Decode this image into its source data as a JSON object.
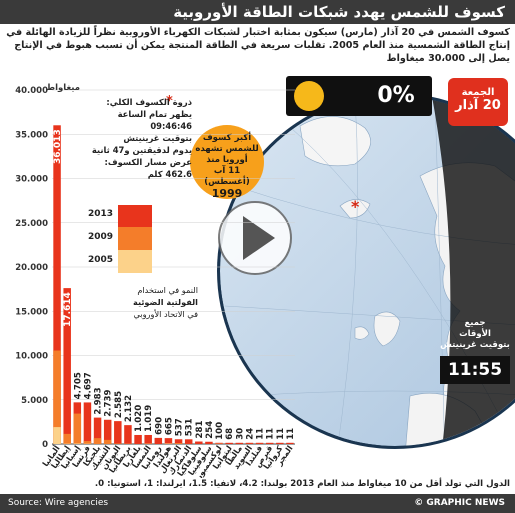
{
  "header": {
    "title": "كسوف للشمس يهدد شبكات الطاقة الأوروبية"
  },
  "intro": {
    "text": "كسوف الشمس في 20 آذار (مارس) سيكون بمثابة اختبار لشبكات الكهرباء الأوروبية نظراً للزيادة الهائلة في إنتاج الطاقة الشمسية منذ العام 2005. تقلبات سريعة في الطاقة المنتجة يمكن أن تسبب هبوط في الإنتاج يصل إلى 30،000 ميغاواط"
  },
  "eclipse": {
    "coverage": "0%",
    "coverage_fraction": 0.0
  },
  "date_badge": {
    "day": "الجمعة",
    "date": "20 آذار"
  },
  "callout": {
    "line1": "أكبر كسوف",
    "line2": "للشمس تشهده",
    "line3": "أوروبا منذ",
    "line4": "11 آب (أغسطس)",
    "year": "1999"
  },
  "time": {
    "label1": "جميع",
    "label2": "الأوقات",
    "label3": "بتوقيت غرينيتش",
    "value": "11:55"
  },
  "info": {
    "title": "ذروة الكسوف الكلي:",
    "line1": "يظهر تمام الساعة",
    "time": "09:46:46",
    "line2": "بتوقيت غرينيتش",
    "line3": "يدوم لدقيقتين و47 ثانية",
    "line4": "عرض مسار الكسوف:",
    "width": "462.6 كلم"
  },
  "colors": {
    "y2013": "#e8341c",
    "y2009": "#f47d2a",
    "y2005": "#fcd28a",
    "accent": "#d62914",
    "callout": "#f7a01b"
  },
  "growth": {
    "line1": "النمو في استخدام",
    "line2": "الفولتية الضوئية",
    "line3": "في الاتحاد الأوروبي"
  },
  "footer": {
    "note": "الدول التي تولد أقل من 10 ميغاواط منذ العام 2013 بولندا: 4.2، لاتفيا: 1.5، ايرلندا: 1، استونيا: 0.",
    "source": "Source: Wire agencies",
    "brand": "© GRAPHIC NEWS"
  },
  "chart_data": {
    "type": "bar",
    "title": "",
    "ylabel": "ميغاواط",
    "ylim": [
      0,
      40000
    ],
    "yticks": [
      "0",
      "5.000",
      "10.000",
      "15.000",
      "20.000",
      "25.000",
      "30.000",
      "35.000",
      "40.000"
    ],
    "legend": [
      "2013",
      "2009",
      "2005"
    ],
    "categories": [
      "ألمانيا",
      "إيطاليا",
      "إسبانيا",
      "فرنسا",
      "بلجيكا",
      "التشيك",
      "اليونان",
      "بريطانيا",
      "بلغاريا",
      "النمسا",
      "رومانيا",
      "هولندا",
      "البرتغال",
      "الدنمارك",
      "سلوفاكيا",
      "سلوفينيا",
      "لوكسمبورغ",
      "ليتوانيا",
      "مالطا",
      "السويد",
      "فنلندا",
      "قبرص",
      "كرواتيا",
      "المجر"
    ],
    "series": [
      {
        "name": "2013",
        "values": [
          36013,
          17614,
          4705,
          4697,
          2983,
          2739,
          2585,
          2132,
          1020,
          1019,
          690,
          665,
          537,
          531,
          281,
          254,
          100,
          68,
          30,
          24,
          11,
          11,
          11,
          11
        ]
      },
      {
        "name": "2009",
        "values": [
          10566,
          1142,
          3438,
          335,
          663,
          465,
          55,
          27,
          6,
          53,
          1,
          67,
          102,
          5,
          1,
          1,
          26,
          1,
          2,
          9,
          8,
          2,
          0,
          1
        ]
      },
      {
        "name": "2005",
        "values": [
          1910,
          37,
          57,
          33,
          2,
          1,
          1,
          11,
          0,
          24,
          0,
          51,
          3,
          3,
          0,
          0,
          24,
          0,
          0,
          4,
          4,
          1,
          0,
          0
        ]
      }
    ],
    "value_labels": [
      "36.013",
      "17.614",
      "4.705",
      "4.697",
      "2.983",
      "2.739",
      "2.585",
      "2.132",
      "1.020",
      "1.019",
      "690",
      "665",
      "537",
      "531",
      "281",
      "254",
      "100",
      "68",
      "30",
      "24",
      "11",
      "11",
      "11",
      "11"
    ]
  }
}
